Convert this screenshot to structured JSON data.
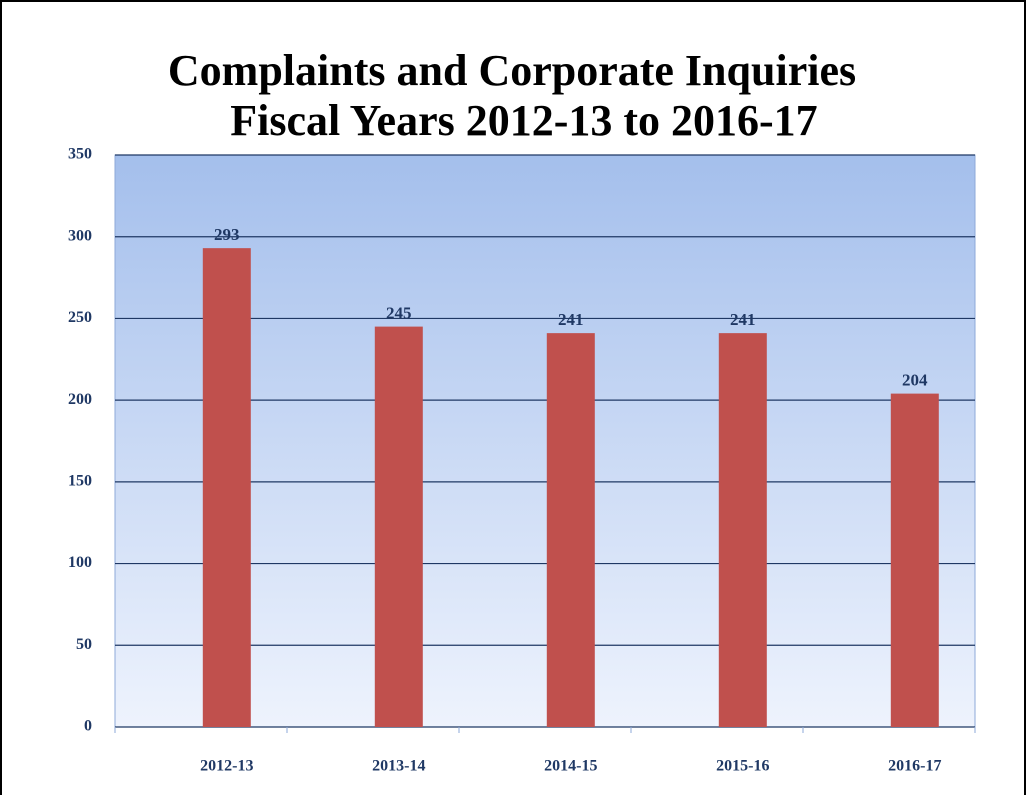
{
  "chart_data": {
    "type": "bar",
    "title": "Complaints and Corporate Inquiries",
    "subtitle": "Fiscal Years 2012-13 to 2016-17",
    "categories": [
      "2012-13",
      "2013-14",
      "2014-15",
      "2015-16",
      "2016-17"
    ],
    "values": [
      293,
      245,
      241,
      241,
      204
    ],
    "color": "#c0504d",
    "ylim": [
      0,
      350
    ],
    "yticks": [
      0,
      50,
      100,
      150,
      200,
      250,
      300,
      350
    ],
    "grid": true
  }
}
